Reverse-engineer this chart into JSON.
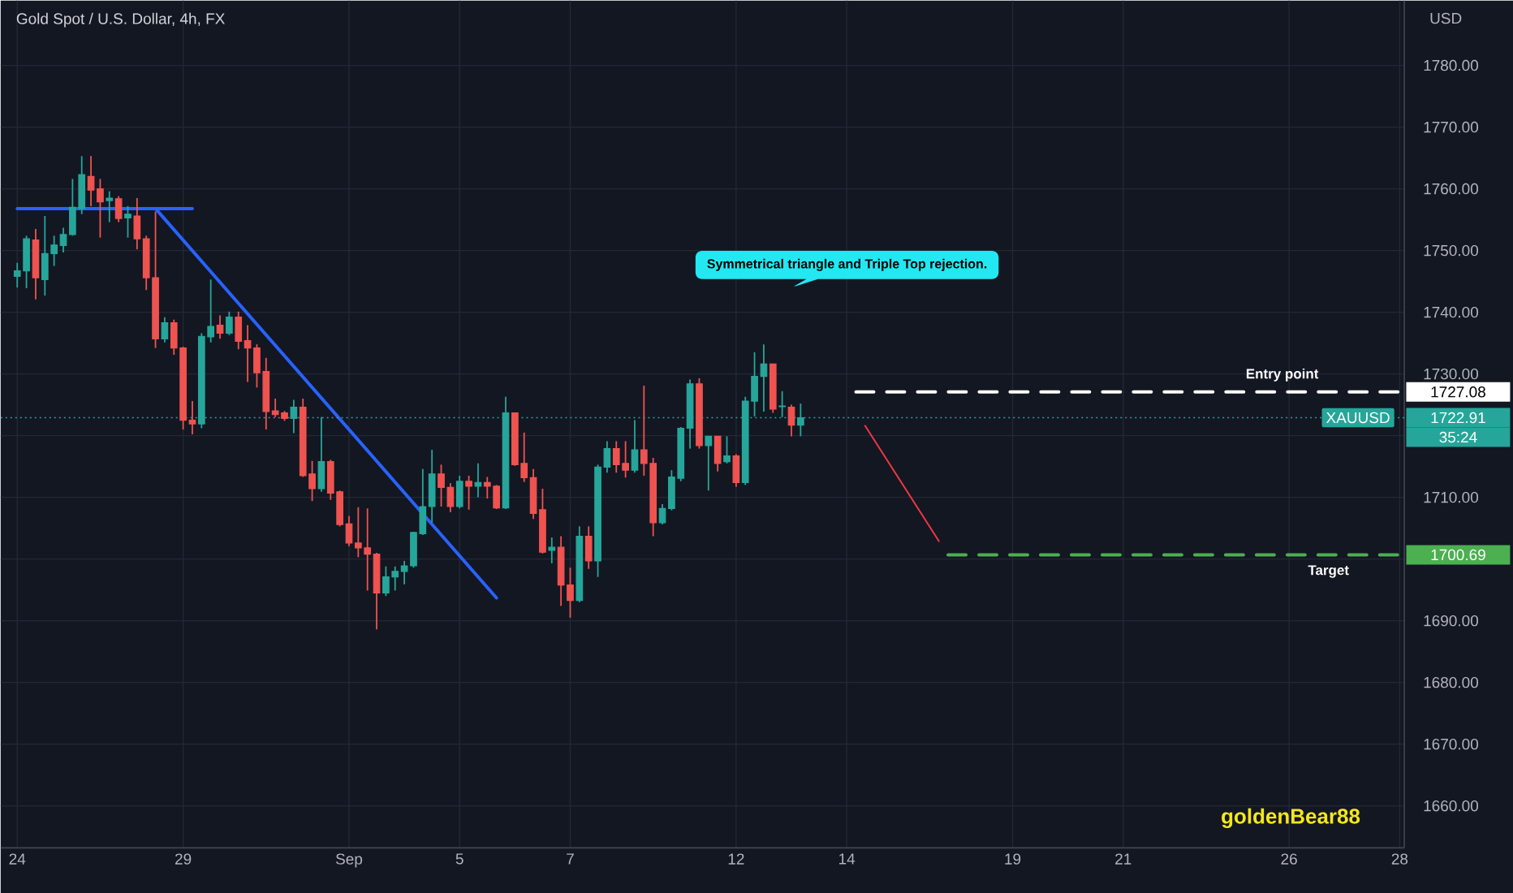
{
  "chart_data": {
    "type": "candlestick",
    "title": "Gold Spot / U.S. Dollar, 4h, FX",
    "ylabel": "USD",
    "ylim": [
      1653.2,
      1790.5
    ],
    "grid": true,
    "categories": [
      "24",
      null,
      null,
      null,
      null,
      null,
      null,
      null,
      null,
      null,
      null,
      null,
      null,
      null,
      null,
      null,
      null,
      null,
      "29",
      null,
      null,
      null,
      null,
      null,
      null,
      null,
      null,
      null,
      null,
      null,
      null,
      null,
      null,
      null,
      null,
      null,
      "Sep",
      null,
      null,
      null,
      null,
      null,
      null,
      null,
      null,
      null,
      null,
      null,
      "5",
      null,
      null,
      null,
      null,
      null,
      null,
      null,
      null,
      null,
      null,
      null,
      "7",
      null,
      null,
      null,
      null,
      null,
      null,
      null,
      null,
      null,
      null,
      null,
      null,
      null,
      null,
      null,
      null,
      null,
      "12",
      null,
      null,
      null,
      null,
      null,
      null,
      null,
      null,
      null,
      null,
      null,
      "14",
      null,
      null,
      null,
      null,
      null,
      null,
      null,
      null,
      null,
      null,
      null,
      null,
      null,
      null,
      null,
      null,
      null,
      "19",
      null,
      null,
      null,
      null,
      null,
      null,
      null,
      null,
      null,
      null,
      null,
      "21",
      null,
      null,
      null,
      null,
      null,
      null,
      null,
      null,
      null,
      null,
      null,
      null,
      null,
      null,
      null,
      null,
      null,
      "26",
      null,
      null,
      null,
      null,
      null,
      null,
      null,
      null,
      null,
      null,
      null,
      "28"
    ],
    "yticks": [
      {
        "value": 1660,
        "label": "1660.00"
      },
      {
        "value": 1670,
        "label": "1670.00"
      },
      {
        "value": 1680,
        "label": "1680.00"
      },
      {
        "value": 1690,
        "label": "1690.00"
      },
      {
        "value": 1700,
        "label": null
      },
      {
        "value": 1710,
        "label": "1710.00"
      },
      {
        "value": 1720,
        "label": null
      },
      {
        "value": 1730,
        "label": "1730.00"
      },
      {
        "value": 1740,
        "label": "1740.00"
      },
      {
        "value": 1750,
        "label": "1750.00"
      },
      {
        "value": 1760,
        "label": "1760.00"
      },
      {
        "value": 1770,
        "label": "1770.00"
      },
      {
        "value": 1780,
        "label": "1780.00"
      }
    ],
    "ohlc": [
      [
        1745.8,
        1748,
        1744,
        1746.7
      ],
      [
        1746.7,
        1752.4,
        1743.9,
        1751.9
      ],
      [
        1751.7,
        1753.5,
        1742.1,
        1745.6
      ],
      [
        1745.3,
        1755.6,
        1742.7,
        1749.5
      ],
      [
        1749.5,
        1752.4,
        1747.5,
        1750.9
      ],
      [
        1750.8,
        1753.7,
        1749.7,
        1752.6
      ],
      [
        1752.6,
        1761.6,
        1752.4,
        1757
      ],
      [
        1756.8,
        1765.3,
        1755.9,
        1762.3
      ],
      [
        1762,
        1765.3,
        1757.2,
        1759.8
      ],
      [
        1760,
        1761.6,
        1752.1,
        1757.9
      ],
      [
        1758.1,
        1759.6,
        1754.6,
        1758.5
      ],
      [
        1758.4,
        1758.8,
        1754.6,
        1755.2
      ],
      [
        1755.3,
        1757.2,
        1752.1,
        1755.9
      ],
      [
        1755.6,
        1758.5,
        1750.2,
        1751.9
      ],
      [
        1751.9,
        1752.4,
        1743.6,
        1745.6
      ],
      [
        1745.6,
        1756.3,
        1734.2,
        1735.7
      ],
      [
        1735.7,
        1739.2,
        1735.1,
        1738.3
      ],
      [
        1738.3,
        1738.8,
        1733.1,
        1734.2
      ],
      [
        1734.2,
        1734.4,
        1721,
        1722.5
      ],
      [
        1722.5,
        1725.6,
        1720.2,
        1721.9
      ],
      [
        1721.9,
        1736.6,
        1721.2,
        1736.1
      ],
      [
        1736,
        1745.3,
        1735.1,
        1737.7
      ],
      [
        1737.9,
        1739.5,
        1735.7,
        1736.6
      ],
      [
        1736.6,
        1740.1,
        1736.3,
        1739.2
      ],
      [
        1739.2,
        1740.1,
        1734,
        1735.3
      ],
      [
        1735.4,
        1737.9,
        1728.7,
        1734.2
      ],
      [
        1734.2,
        1734.8,
        1727.8,
        1730.2
      ],
      [
        1730.4,
        1732.6,
        1721,
        1723.9
      ],
      [
        1724,
        1726,
        1723,
        1723.4
      ],
      [
        1723.7,
        1724,
        1722.4,
        1722.8
      ],
      [
        1722.8,
        1725.8,
        1720.4,
        1724.6
      ],
      [
        1724.6,
        1726,
        1713.3,
        1713.5
      ],
      [
        1713.8,
        1715.9,
        1709.4,
        1711.4
      ],
      [
        1711.4,
        1723,
        1710.9,
        1715.8
      ],
      [
        1715.8,
        1716.1,
        1709.6,
        1710.7
      ],
      [
        1710.9,
        1711.1,
        1705.3,
        1705.6
      ],
      [
        1705.7,
        1707,
        1702.1,
        1702.6
      ],
      [
        1702.6,
        1708.4,
        1700.3,
        1701.8
      ],
      [
        1701.8,
        1708.2,
        1694.9,
        1700.8
      ],
      [
        1700.8,
        1701,
        1688.6,
        1694.5
      ],
      [
        1694.5,
        1698.8,
        1694,
        1697.1
      ],
      [
        1697.1,
        1698.8,
        1694.9,
        1698
      ],
      [
        1698,
        1699.7,
        1695.9,
        1698.9
      ],
      [
        1698.9,
        1704.4,
        1698.6,
        1704.3
      ],
      [
        1704.1,
        1714.6,
        1703.9,
        1708.5
      ],
      [
        1708.5,
        1717.7,
        1705.9,
        1713.8
      ],
      [
        1713.8,
        1715.3,
        1708.5,
        1711.6
      ],
      [
        1711.6,
        1712.3,
        1707.6,
        1708.5
      ],
      [
        1708.5,
        1713.5,
        1708.2,
        1712.6
      ],
      [
        1712.6,
        1713.5,
        1708,
        1711.8
      ],
      [
        1711.8,
        1715.5,
        1710,
        1712.4
      ],
      [
        1712.4,
        1713.3,
        1709.8,
        1711.8
      ],
      [
        1711.8,
        1712,
        1708.1,
        1708.3
      ],
      [
        1708.3,
        1726.3,
        1708.1,
        1723.7
      ],
      [
        1723.7,
        1723.7,
        1715.1,
        1715.3
      ],
      [
        1715.5,
        1720.5,
        1712.5,
        1713.2
      ],
      [
        1713.2,
        1714.6,
        1706.5,
        1707.4
      ],
      [
        1708,
        1711.4,
        1700.9,
        1701.1
      ],
      [
        1701.4,
        1703.5,
        1699.3,
        1701.9
      ],
      [
        1701.9,
        1703.7,
        1692.4,
        1695.8
      ],
      [
        1695.8,
        1698.6,
        1690.5,
        1693.3
      ],
      [
        1693.3,
        1705.3,
        1693,
        1703.7
      ],
      [
        1703.7,
        1705.3,
        1698.4,
        1699.7
      ],
      [
        1699.7,
        1715.3,
        1697.1,
        1714.9
      ],
      [
        1714.9,
        1719.1,
        1714,
        1717.9
      ],
      [
        1717.9,
        1719.1,
        1714,
        1715.3
      ],
      [
        1715.5,
        1719.1,
        1713.2,
        1714.4
      ],
      [
        1714.4,
        1722.5,
        1714,
        1717.7
      ],
      [
        1717.7,
        1728.1,
        1713.5,
        1715.5
      ],
      [
        1715.5,
        1716.4,
        1703.7,
        1705.9
      ],
      [
        1705.9,
        1708.9,
        1705.6,
        1708.2
      ],
      [
        1708.2,
        1714.4,
        1707.9,
        1713.3
      ],
      [
        1713.1,
        1721.4,
        1712.6,
        1721.2
      ],
      [
        1721.2,
        1729.1,
        1717.9,
        1728.4
      ],
      [
        1728.4,
        1729.3,
        1717.9,
        1718.4
      ],
      [
        1718.4,
        1719.9,
        1711.1,
        1719.9
      ],
      [
        1719.9,
        1719.9,
        1714.2,
        1715.5
      ],
      [
        1715.8,
        1719.9,
        1715.5,
        1716.7
      ],
      [
        1716.7,
        1717,
        1711.7,
        1712.4
      ],
      [
        1712.4,
        1726.3,
        1712,
        1725.6
      ],
      [
        1725.6,
        1733.5,
        1723.1,
        1729.6
      ],
      [
        1729.6,
        1734.8,
        1723.9,
        1731.6
      ],
      [
        1731.6,
        1731.6,
        1723.7,
        1724.3
      ],
      [
        1724.7,
        1727.2,
        1723,
        1724.8
      ],
      [
        1724.6,
        1725,
        1719.9,
        1721.7
      ],
      [
        1721.7,
        1725.2,
        1719.9,
        1722.91
      ],
      null,
      null,
      null,
      null,
      null,
      null,
      null,
      null,
      null,
      null,
      null,
      null,
      null,
      null,
      null,
      null,
      null,
      null,
      null,
      null,
      null,
      null,
      null,
      null,
      null,
      null,
      null,
      null,
      null,
      null,
      null,
      null,
      null,
      null,
      null,
      null,
      null,
      null,
      null,
      null,
      null,
      null,
      null,
      null,
      null,
      null,
      null,
      null,
      null,
      null,
      null,
      null,
      null,
      null,
      null,
      null,
      null,
      null,
      null,
      null,
      null,
      null,
      null,
      null,
      null
    ],
    "series": [
      {
        "type": "line",
        "color": "#2962ff",
        "line_style": "solid",
        "values": [
          1756.8,
          null,
          null,
          null,
          null,
          null,
          null,
          null,
          null,
          null,
          null,
          null,
          null,
          null,
          null,
          null,
          null,
          null,
          null,
          1756.8,
          null,
          null,
          null,
          null,
          null,
          null,
          null,
          null,
          null,
          null,
          null,
          null,
          null,
          null,
          null,
          null,
          null,
          null,
          null,
          null,
          null,
          null,
          null,
          null,
          null,
          null,
          null,
          null,
          null,
          null,
          null,
          null,
          null,
          null,
          null,
          null,
          null,
          null,
          null,
          null,
          null,
          null,
          null,
          null,
          null,
          null,
          null,
          null,
          null,
          null,
          null,
          null,
          null,
          null,
          null,
          null,
          null,
          null,
          null,
          null,
          null,
          null,
          null,
          null,
          null,
          null,
          null,
          null,
          null,
          null,
          null,
          null,
          null,
          null,
          null,
          null,
          null,
          null,
          null,
          null,
          null,
          null,
          null,
          null,
          null,
          null,
          null,
          null,
          null,
          null,
          null,
          null,
          null,
          null,
          null,
          null,
          null,
          null,
          null,
          null,
          null,
          null,
          null,
          null,
          null,
          null,
          null,
          null,
          null,
          null,
          null,
          null,
          null,
          null,
          null,
          null,
          null,
          null,
          null,
          null,
          null,
          null,
          null,
          null,
          null,
          null,
          null,
          null,
          null,
          null,
          null
        ]
      },
      {
        "type": "line",
        "color": "#2962ff",
        "line_style": "solid",
        "values": [
          null,
          null,
          null,
          null,
          null,
          null,
          null,
          null,
          null,
          null,
          null,
          null,
          null,
          null,
          null,
          1756.8,
          null,
          null,
          null,
          null,
          null,
          null,
          null,
          null,
          null,
          null,
          null,
          null,
          null,
          null,
          null,
          null,
          null,
          null,
          null,
          null,
          null,
          null,
          null,
          null,
          null,
          null,
          null,
          null,
          null,
          null,
          null,
          null,
          null,
          null,
          null,
          null,
          1693.7,
          null,
          null,
          null,
          null,
          null,
          null,
          null,
          null,
          null,
          null,
          null,
          null,
          null,
          null,
          null,
          null,
          null,
          null,
          null,
          null,
          null,
          null,
          null,
          null,
          null,
          null,
          null,
          null,
          null,
          null,
          null,
          null,
          null,
          null,
          null,
          null,
          null,
          null,
          null,
          null,
          null,
          null,
          null,
          null,
          null,
          null,
          null,
          null,
          null,
          null,
          null,
          null,
          null,
          null,
          null,
          null,
          null,
          null,
          null,
          null,
          null,
          null,
          null,
          null,
          null,
          null,
          null,
          null,
          null,
          null,
          null,
          null,
          null,
          null,
          null,
          null,
          null,
          null,
          null,
          null,
          null,
          null,
          null,
          null,
          null,
          null,
          null,
          null,
          null,
          null,
          null,
          null,
          null,
          null,
          null,
          null,
          null,
          null
        ]
      },
      {
        "type": "line",
        "color": "#ffffff",
        "line_style": "dashed",
        "values": [
          null,
          null,
          null,
          null,
          null,
          null,
          null,
          null,
          null,
          null,
          null,
          null,
          null,
          null,
          null,
          null,
          null,
          null,
          null,
          null,
          null,
          null,
          null,
          null,
          null,
          null,
          null,
          null,
          null,
          null,
          null,
          null,
          null,
          null,
          null,
          null,
          null,
          null,
          null,
          null,
          null,
          null,
          null,
          null,
          null,
          null,
          null,
          null,
          null,
          null,
          null,
          null,
          null,
          null,
          null,
          null,
          null,
          null,
          null,
          null,
          null,
          null,
          null,
          null,
          null,
          null,
          null,
          null,
          null,
          null,
          null,
          null,
          null,
          null,
          null,
          null,
          null,
          null,
          null,
          null,
          null,
          null,
          null,
          null,
          null,
          null,
          null,
          null,
          null,
          null,
          null,
          1727.08,
          null,
          null,
          null,
          null,
          null,
          null,
          null,
          null,
          null,
          null,
          null,
          null,
          null,
          null,
          null,
          null,
          null,
          null,
          null,
          null,
          null,
          null,
          null,
          null,
          null,
          null,
          null,
          null,
          null,
          null,
          null,
          null,
          null,
          null,
          null,
          null,
          null,
          null,
          null,
          null,
          null,
          null,
          null,
          null,
          null,
          null,
          null,
          null,
          null,
          null,
          null,
          null,
          null,
          null,
          null,
          null,
          null,
          null,
          1727.08
        ]
      },
      {
        "type": "line",
        "color": "#4caf50",
        "line_style": "dashed",
        "values": [
          null,
          null,
          null,
          null,
          null,
          null,
          null,
          null,
          null,
          null,
          null,
          null,
          null,
          null,
          null,
          null,
          null,
          null,
          null,
          null,
          null,
          null,
          null,
          null,
          null,
          null,
          null,
          null,
          null,
          null,
          null,
          null,
          null,
          null,
          null,
          null,
          null,
          null,
          null,
          null,
          null,
          null,
          null,
          null,
          null,
          null,
          null,
          null,
          null,
          null,
          null,
          null,
          null,
          null,
          null,
          null,
          null,
          null,
          null,
          null,
          null,
          null,
          null,
          null,
          null,
          null,
          null,
          null,
          null,
          null,
          null,
          null,
          null,
          null,
          null,
          null,
          null,
          null,
          null,
          null,
          null,
          null,
          null,
          null,
          null,
          null,
          null,
          null,
          null,
          null,
          null,
          null,
          null,
          null,
          null,
          null,
          null,
          null,
          null,
          null,
          null,
          1700.69,
          null,
          null,
          null,
          null,
          null,
          null,
          null,
          null,
          null,
          null,
          null,
          null,
          null,
          null,
          null,
          null,
          null,
          null,
          null,
          null,
          null,
          null,
          null,
          null,
          null,
          null,
          null,
          null,
          null,
          null,
          null,
          null,
          null,
          null,
          null,
          null,
          null,
          null,
          null,
          null,
          null,
          null,
          null,
          null,
          null,
          null,
          null,
          null,
          1700.69
        ]
      },
      {
        "type": "line",
        "color": "#f23645",
        "line_style": "solid",
        "values": [
          null,
          null,
          null,
          null,
          null,
          null,
          null,
          null,
          null,
          null,
          null,
          null,
          null,
          null,
          null,
          null,
          null,
          null,
          null,
          null,
          null,
          null,
          null,
          null,
          null,
          null,
          null,
          null,
          null,
          null,
          null,
          null,
          null,
          null,
          null,
          null,
          null,
          null,
          null,
          null,
          null,
          null,
          null,
          null,
          null,
          null,
          null,
          null,
          null,
          null,
          null,
          null,
          null,
          null,
          null,
          null,
          null,
          null,
          null,
          null,
          null,
          null,
          null,
          null,
          null,
          null,
          null,
          null,
          null,
          null,
          null,
          null,
          null,
          null,
          null,
          null,
          null,
          null,
          null,
          null,
          null,
          null,
          null,
          null,
          null,
          null,
          null,
          null,
          null,
          null,
          null,
          null,
          1721.6,
          null,
          null,
          null,
          null,
          null,
          null,
          null,
          1702.9,
          null,
          null,
          null,
          null,
          null,
          null,
          null,
          null,
          null,
          null,
          null,
          null,
          null,
          null,
          null,
          null,
          null,
          null,
          null,
          null,
          null,
          null,
          null,
          null,
          null,
          null,
          null,
          null,
          null,
          null,
          null,
          null,
          null,
          null,
          null,
          null,
          null,
          null,
          null,
          null,
          null,
          null,
          null,
          null,
          null,
          null,
          null,
          null,
          null,
          null
        ]
      }
    ],
    "ref_lines": [
      {
        "axis": "y",
        "value": 1722.91,
        "label": "XAUUSD",
        "color": "#26a69a",
        "line_style": "dotted"
      }
    ],
    "annotations": [
      "Symmetrical triangle and Triple Top rejection.",
      "Entry point",
      "Target",
      "1727.08",
      "1722.91",
      "35:24",
      "1700.69",
      "goldenBear88"
    ]
  }
}
